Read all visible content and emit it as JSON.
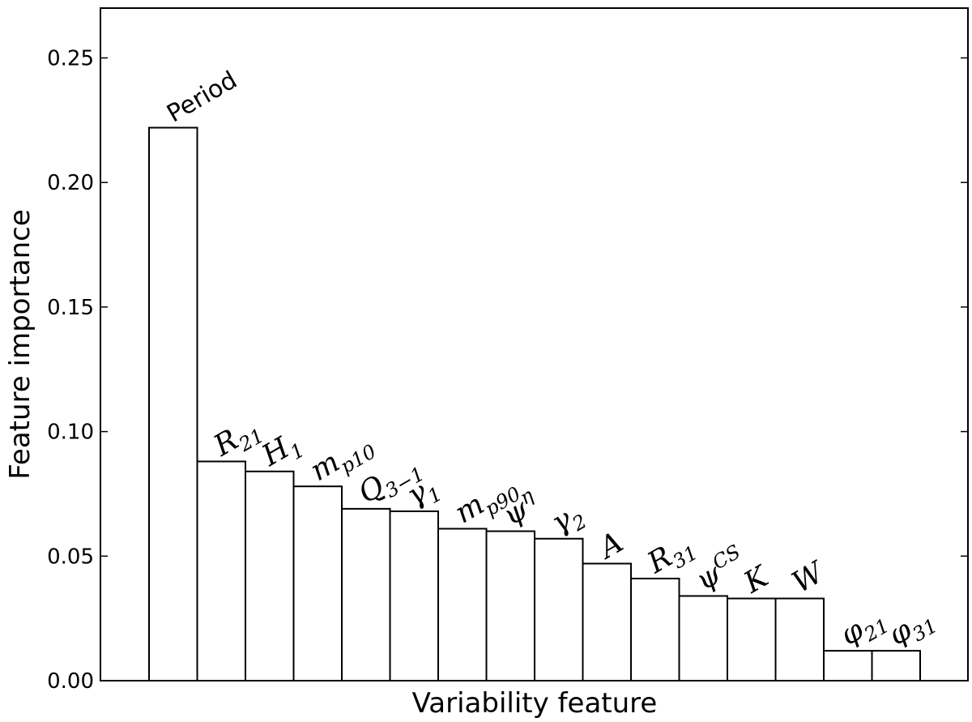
{
  "chart_data": {
    "type": "bar",
    "xlabel": "Variability feature",
    "ylabel": "Feature importance",
    "ylim": [
      0,
      0.27
    ],
    "yticks": [
      "0.00",
      "0.05",
      "0.10",
      "0.15",
      "0.20",
      "0.25"
    ],
    "grid": false,
    "bar_fill": "#ffffff",
    "bar_edge": "#000000",
    "categories": [
      {
        "label": "Period",
        "base": "Period",
        "sub": "",
        "sup": "",
        "style": "plain"
      },
      {
        "label": "R21",
        "base": "R",
        "sub": "21",
        "sup": "",
        "style": "upright-serif"
      },
      {
        "label": "H1",
        "base": "H",
        "sub": "1",
        "sup": "",
        "style": "italic"
      },
      {
        "label": "mp10",
        "base": "m",
        "sub": "p10",
        "sup": "",
        "style": "italic"
      },
      {
        "label": "Q3−1",
        "base": "Q",
        "sub": "3−1",
        "sup": "",
        "style": "italic"
      },
      {
        "label": "γ1",
        "base": "γ",
        "sub": "1",
        "sup": "",
        "style": "italic"
      },
      {
        "label": "mp90",
        "base": "m",
        "sub": "p90",
        "sup": "",
        "style": "italic"
      },
      {
        "label": "ψη",
        "base": "ψ",
        "sub": "",
        "sup": "η",
        "style": "italic"
      },
      {
        "label": "γ2",
        "base": "γ",
        "sub": "2",
        "sup": "",
        "style": "italic"
      },
      {
        "label": "A",
        "base": "A",
        "sub": "",
        "sup": "",
        "style": "italic"
      },
      {
        "label": "R31",
        "base": "R",
        "sub": "31",
        "sup": "",
        "style": "upright-serif"
      },
      {
        "label": "ψCS",
        "base": "ψ",
        "sub": "",
        "sup": "CS",
        "style": "italic"
      },
      {
        "label": "K",
        "base": "K",
        "sub": "",
        "sup": "",
        "style": "italic"
      },
      {
        "label": "W",
        "base": "W",
        "sub": "",
        "sup": "",
        "style": "italic"
      },
      {
        "label": "φ21",
        "base": "φ",
        "sub": "21",
        "sup": "",
        "style": "italic"
      },
      {
        "label": "φ31",
        "base": "φ",
        "sub": "31",
        "sup": "",
        "style": "italic"
      }
    ],
    "values": [
      0.222,
      0.088,
      0.084,
      0.078,
      0.069,
      0.068,
      0.061,
      0.06,
      0.057,
      0.047,
      0.041,
      0.034,
      0.033,
      0.033,
      0.012,
      0.012
    ]
  }
}
